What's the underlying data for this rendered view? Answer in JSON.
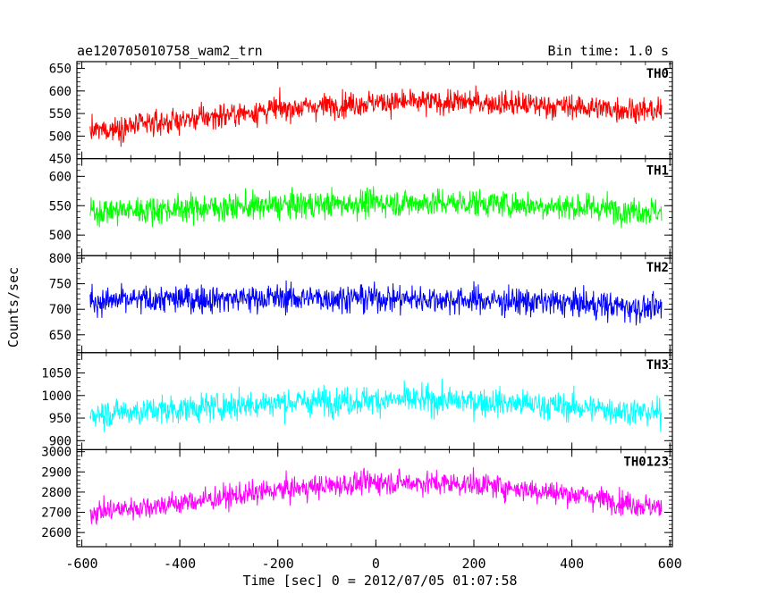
{
  "header": {
    "title": "ae120705010758_wam2_trn",
    "bin_time": "Bin time: 1.0 s"
  },
  "chart_data": {
    "type": "line",
    "xlabel": "Time [sec] 0 = 2012/07/05 01:07:58",
    "ylabel": "Counts/sec",
    "xlim": [
      -610,
      605
    ],
    "x_ticks": [
      -600,
      -400,
      -200,
      0,
      200,
      400,
      600
    ],
    "x_range": [
      -583,
      583
    ],
    "bin_time": 1.0,
    "grid": false,
    "panels": [
      {
        "name": "TH0",
        "color": "#ff0000",
        "ylim": [
          450,
          665
        ],
        "y_ticks": [
          450,
          500,
          550,
          600,
          650
        ],
        "trend_x": [
          -583,
          -400,
          -200,
          0,
          200,
          400,
          583
        ],
        "trend_y": [
          510,
          535,
          560,
          575,
          575,
          565,
          555
        ],
        "noise": 35
      },
      {
        "name": "TH1",
        "color": "#00ff00",
        "ylim": [
          465,
          630
        ],
        "y_ticks": [
          500,
          550,
          600
        ],
        "trend_x": [
          -583,
          -400,
          -200,
          0,
          200,
          400,
          583
        ],
        "trend_y": [
          540,
          545,
          550,
          555,
          555,
          548,
          540
        ],
        "noise": 30
      },
      {
        "name": "TH2",
        "color": "#0000ff",
        "ylim": [
          615,
          805
        ],
        "y_ticks": [
          650,
          700,
          750,
          800
        ],
        "trend_x": [
          -583,
          -400,
          -200,
          0,
          200,
          400,
          583
        ],
        "trend_y": [
          715,
          720,
          722,
          722,
          718,
          712,
          700
        ],
        "noise": 35
      },
      {
        "name": "TH3",
        "color": "#00ffff",
        "ylim": [
          880,
          1095
        ],
        "y_ticks": [
          900,
          950,
          1000,
          1050
        ],
        "trend_x": [
          -583,
          -400,
          -200,
          0,
          200,
          400,
          583
        ],
        "trend_y": [
          960,
          970,
          985,
          990,
          988,
          975,
          960
        ],
        "noise": 40
      },
      {
        "name": "TH0123",
        "color": "#ff00ff",
        "ylim": [
          2530,
          3010
        ],
        "y_ticks": [
          2600,
          2700,
          2800,
          2900,
          3000
        ],
        "trend_x": [
          -583,
          -400,
          -200,
          0,
          200,
          400,
          583
        ],
        "trend_y": [
          2700,
          2745,
          2810,
          2850,
          2840,
          2790,
          2720
        ],
        "noise": 75
      }
    ]
  }
}
